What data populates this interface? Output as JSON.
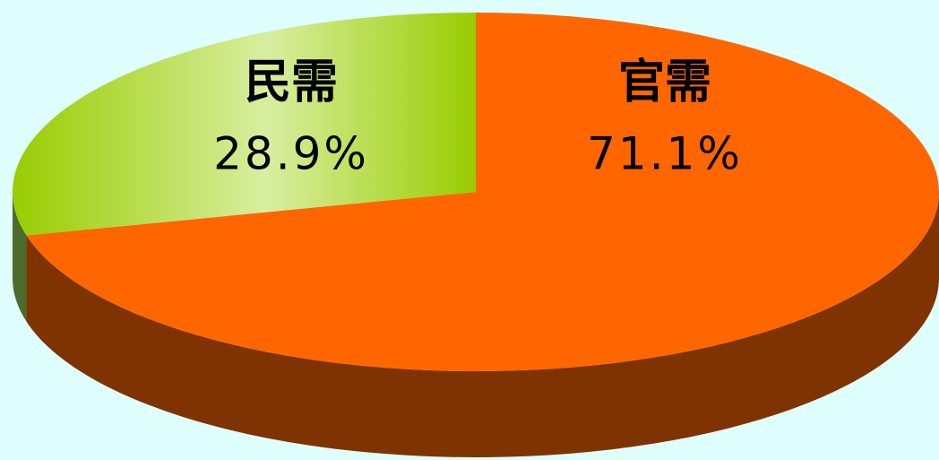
{
  "chart_data": {
    "type": "pie",
    "categories": [
      "官需",
      "民需"
    ],
    "values": [
      71.1,
      28.9
    ],
    "value_labels": [
      "71.1%",
      "28.9%"
    ],
    "colors": [
      "#ff6600",
      "#99cc00"
    ]
  }
}
